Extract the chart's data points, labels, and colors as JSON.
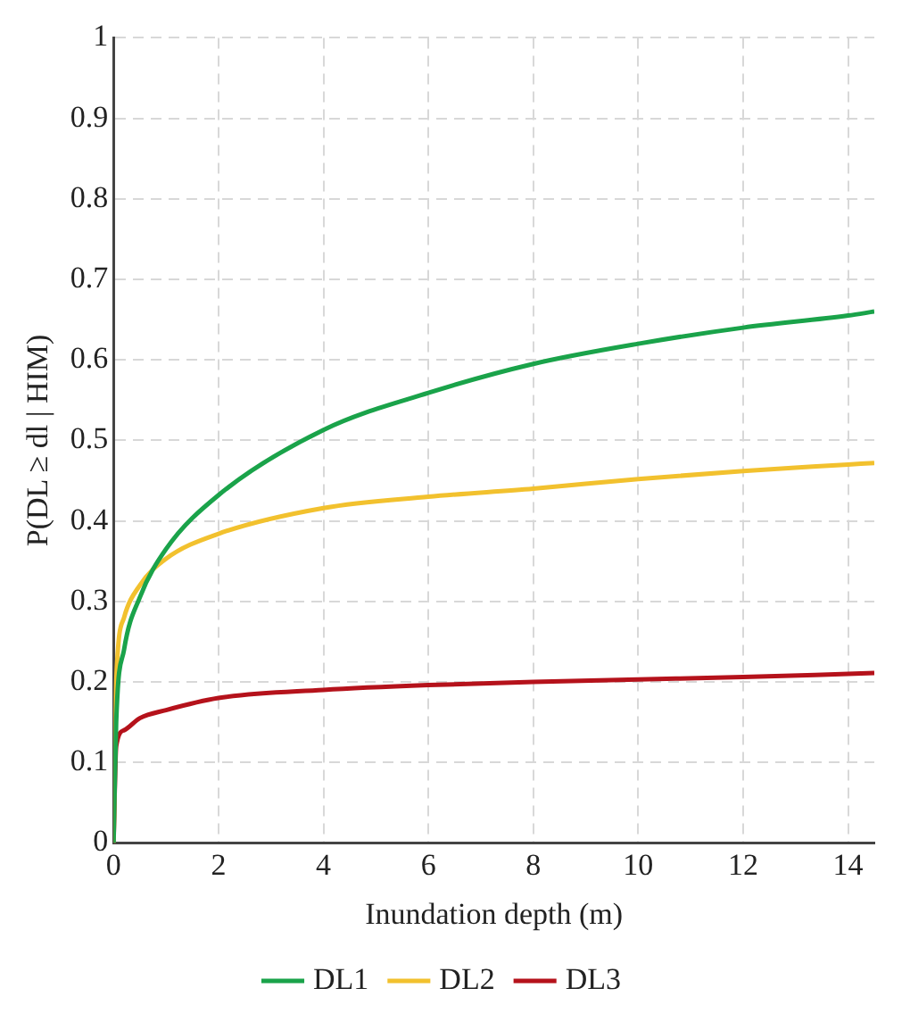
{
  "chart_data": {
    "type": "line",
    "xlabel": "Inundation depth (m)",
    "ylabel": "P(DL ≥ dl | HIM)",
    "xlim": [
      0,
      14.5
    ],
    "xticks": [
      0,
      2,
      4,
      6,
      8,
      10,
      12,
      14
    ],
    "ylim": [
      0,
      1
    ],
    "yticks": [
      0,
      0.1,
      0.2,
      0.3,
      0.4,
      0.5,
      0.6,
      0.7,
      0.8,
      0.9,
      1
    ],
    "grid": true,
    "legend": "bottom",
    "marker": "none",
    "line_style": "solid",
    "x": [
      0,
      0.05,
      0.2,
      0.5,
      1,
      2,
      4,
      6,
      8,
      10,
      12,
      14,
      14.5
    ],
    "series": [
      {
        "name": "DL1",
        "color": "#1aa34a",
        "values": [
          0,
          0.15,
          0.24,
          0.305,
          0.365,
          0.432,
          0.513,
          0.559,
          0.595,
          0.62,
          0.64,
          0.655,
          0.66
        ]
      },
      {
        "name": "DL2",
        "color": "#f2c12e",
        "values": [
          0,
          0.2,
          0.28,
          0.32,
          0.353,
          0.384,
          0.416,
          0.43,
          0.44,
          0.452,
          0.462,
          0.47,
          0.472
        ]
      },
      {
        "name": "DL3",
        "color": "#b5121b",
        "values": [
          0,
          0.12,
          0.14,
          0.155,
          0.165,
          0.18,
          0.19,
          0.196,
          0.2,
          0.203,
          0.206,
          0.21,
          0.211
        ]
      }
    ]
  }
}
